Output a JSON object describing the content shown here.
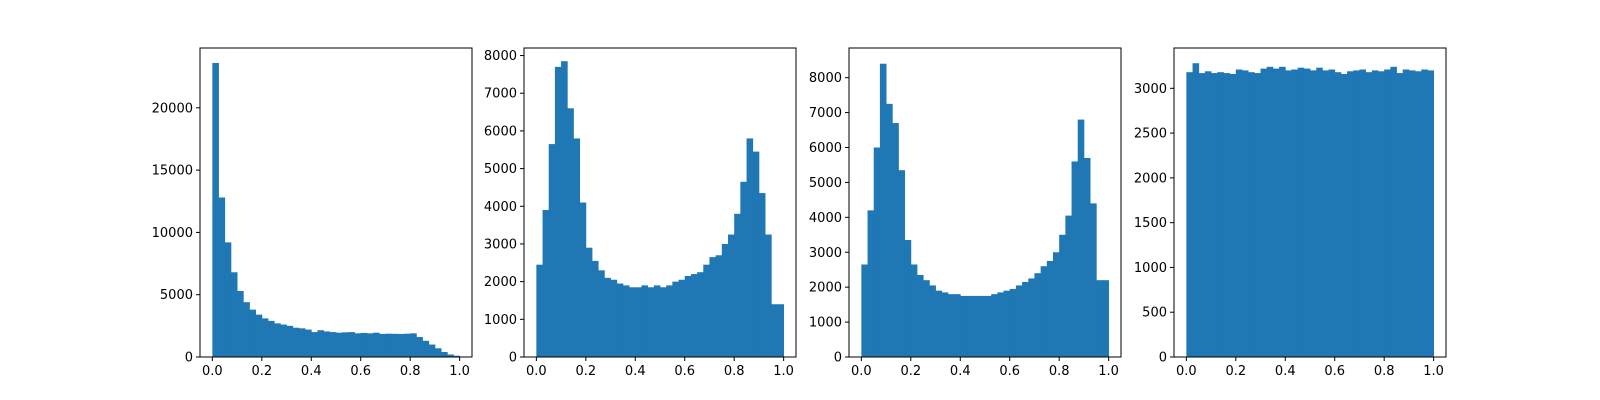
{
  "figure": {
    "bar_color": "#1f77b4",
    "axis_color": "#000000"
  },
  "chart_data": [
    {
      "type": "bar",
      "title": "",
      "xlabel": "",
      "ylabel": "",
      "xlim": [
        -0.05,
        1.05
      ],
      "ylim": [
        0,
        24800
      ],
      "grid": false,
      "x_ticks": [
        0.0,
        0.2,
        0.4,
        0.6,
        0.8,
        1.0
      ],
      "x_tick_labels": [
        "0.0",
        "0.2",
        "0.4",
        "0.6",
        "0.8",
        "1.0"
      ],
      "y_ticks": [
        0,
        5000,
        10000,
        15000,
        20000
      ],
      "y_tick_labels": [
        "0",
        "5000",
        "10000",
        "15000",
        "20000"
      ],
      "bin_range": [
        0,
        1
      ],
      "bins": 40,
      "values": [
        23600,
        12800,
        9200,
        6800,
        5300,
        4400,
        3800,
        3400,
        3100,
        2900,
        2700,
        2600,
        2500,
        2350,
        2300,
        2200,
        2000,
        2150,
        2050,
        2000,
        1950,
        1980,
        2000,
        1900,
        1930,
        1900,
        1950,
        1850,
        1870,
        1860,
        1850,
        1870,
        1900,
        1600,
        1300,
        1000,
        700,
        400,
        200,
        100
      ]
    },
    {
      "type": "bar",
      "title": "",
      "xlabel": "",
      "ylabel": "",
      "xlim": [
        -0.05,
        1.05
      ],
      "ylim": [
        0,
        8200
      ],
      "grid": false,
      "x_ticks": [
        0.0,
        0.2,
        0.4,
        0.6,
        0.8,
        1.0
      ],
      "x_tick_labels": [
        "0.0",
        "0.2",
        "0.4",
        "0.6",
        "0.8",
        "1.0"
      ],
      "y_ticks": [
        0,
        1000,
        2000,
        3000,
        4000,
        5000,
        6000,
        7000,
        8000
      ],
      "y_tick_labels": [
        "0",
        "1000",
        "2000",
        "3000",
        "4000",
        "5000",
        "6000",
        "7000",
        "8000"
      ],
      "bin_range": [
        0,
        1
      ],
      "bins": 40,
      "values": [
        2450,
        3900,
        5650,
        7700,
        7850,
        6600,
        5800,
        4100,
        2900,
        2550,
        2300,
        2100,
        2050,
        1950,
        1900,
        1850,
        1850,
        1900,
        1850,
        1900,
        1850,
        1900,
        2000,
        2050,
        2150,
        2200,
        2250,
        2450,
        2650,
        2700,
        3000,
        3250,
        3800,
        4650,
        5800,
        5450,
        4350,
        3250,
        1400,
        1400
      ]
    },
    {
      "type": "bar",
      "title": "",
      "xlabel": "",
      "ylabel": "",
      "xlim": [
        -0.05,
        1.05
      ],
      "ylim": [
        0,
        8850
      ],
      "grid": false,
      "x_ticks": [
        0.0,
        0.2,
        0.4,
        0.6,
        0.8,
        1.0
      ],
      "x_tick_labels": [
        "0.0",
        "0.2",
        "0.4",
        "0.6",
        "0.8",
        "1.0"
      ],
      "y_ticks": [
        0,
        1000,
        2000,
        3000,
        4000,
        5000,
        6000,
        7000,
        8000
      ],
      "y_tick_labels": [
        "0",
        "1000",
        "2000",
        "3000",
        "4000",
        "5000",
        "6000",
        "7000",
        "8000"
      ],
      "bin_range": [
        0,
        1
      ],
      "bins": 40,
      "values": [
        2650,
        4200,
        6000,
        8400,
        7250,
        6700,
        5350,
        3350,
        2650,
        2350,
        2200,
        2050,
        1900,
        1850,
        1800,
        1800,
        1750,
        1750,
        1750,
        1750,
        1750,
        1800,
        1850,
        1900,
        1950,
        2050,
        2150,
        2250,
        2400,
        2600,
        2750,
        3000,
        3500,
        4050,
        5600,
        6800,
        5700,
        4400,
        2200,
        2200
      ]
    },
    {
      "type": "bar",
      "title": "",
      "xlabel": "",
      "ylabel": "",
      "xlim": [
        -0.05,
        1.05
      ],
      "ylim": [
        0,
        3450
      ],
      "grid": false,
      "x_ticks": [
        0.0,
        0.2,
        0.4,
        0.6,
        0.8,
        1.0
      ],
      "x_tick_labels": [
        "0.0",
        "0.2",
        "0.4",
        "0.6",
        "0.8",
        "1.0"
      ],
      "y_ticks": [
        0,
        500,
        1000,
        1500,
        2000,
        2500,
        3000
      ],
      "y_tick_labels": [
        "0",
        "500",
        "1000",
        "1500",
        "2000",
        "2500",
        "3000"
      ],
      "bin_range": [
        0,
        1
      ],
      "bins": 40,
      "values": [
        3180,
        3280,
        3170,
        3190,
        3170,
        3180,
        3170,
        3160,
        3210,
        3200,
        3180,
        3170,
        3220,
        3240,
        3220,
        3240,
        3200,
        3210,
        3230,
        3220,
        3200,
        3230,
        3200,
        3210,
        3180,
        3160,
        3190,
        3200,
        3210,
        3180,
        3200,
        3190,
        3210,
        3240,
        3170,
        3210,
        3200,
        3190,
        3210,
        3200
      ]
    }
  ]
}
